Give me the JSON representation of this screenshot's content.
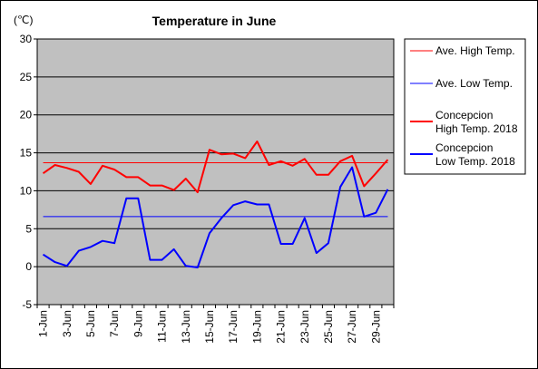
{
  "chart_data": {
    "type": "line",
    "title": "Temperature in June",
    "unit_label": "(℃)",
    "ylim": [
      -5,
      30
    ],
    "y_ticks": [
      30,
      25,
      20,
      15,
      10,
      5,
      0,
      -5
    ],
    "x_tick_labels": [
      "1-Jun",
      "3-Jun",
      "5-Jun",
      "7-Jun",
      "9-Jun",
      "11-Jun",
      "13-Jun",
      "15-Jun",
      "17-Jun",
      "19-Jun",
      "21-Jun",
      "23-Jun",
      "25-Jun",
      "27-Jun",
      "29-Jun"
    ],
    "days": [
      1,
      2,
      3,
      4,
      5,
      6,
      7,
      8,
      9,
      10,
      11,
      12,
      13,
      14,
      15,
      16,
      17,
      18,
      19,
      20,
      21,
      22,
      23,
      24,
      25,
      26,
      27,
      28,
      29,
      30
    ],
    "grid": true,
    "legend_position": "right",
    "reference_lines": [
      {
        "name": "Ave. High Temp.",
        "value": 13.7,
        "color": "#ff0000"
      },
      {
        "name": "Ave. Low Temp.",
        "value": 6.6,
        "color": "#0000ff"
      }
    ],
    "series": [
      {
        "name_line1": "Concepcion",
        "name_line2": "High Temp. 2018",
        "color": "#ff0000",
        "values": [
          12.3,
          13.4,
          13.0,
          12.5,
          10.9,
          13.3,
          12.8,
          11.8,
          11.8,
          10.7,
          10.7,
          10.1,
          11.6,
          9.8,
          15.4,
          14.8,
          14.9,
          14.3,
          16.5,
          13.4,
          13.9,
          13.3,
          14.2,
          12.1,
          12.1,
          13.9,
          14.6,
          10.6,
          12.3,
          14.1
        ]
      },
      {
        "name_line1": "Concepcion",
        "name_line2": "Low Temp. 2018",
        "color": "#0000ff",
        "values": [
          1.6,
          0.6,
          0.1,
          2.1,
          2.6,
          3.4,
          3.1,
          9.0,
          9.0,
          0.9,
          0.9,
          2.3,
          0.1,
          -0.1,
          4.4,
          6.4,
          8.1,
          8.6,
          8.2,
          8.2,
          3.0,
          3.0,
          6.4,
          1.8,
          3.1,
          10.5,
          13.1,
          6.6,
          7.1,
          10.2
        ]
      }
    ]
  }
}
